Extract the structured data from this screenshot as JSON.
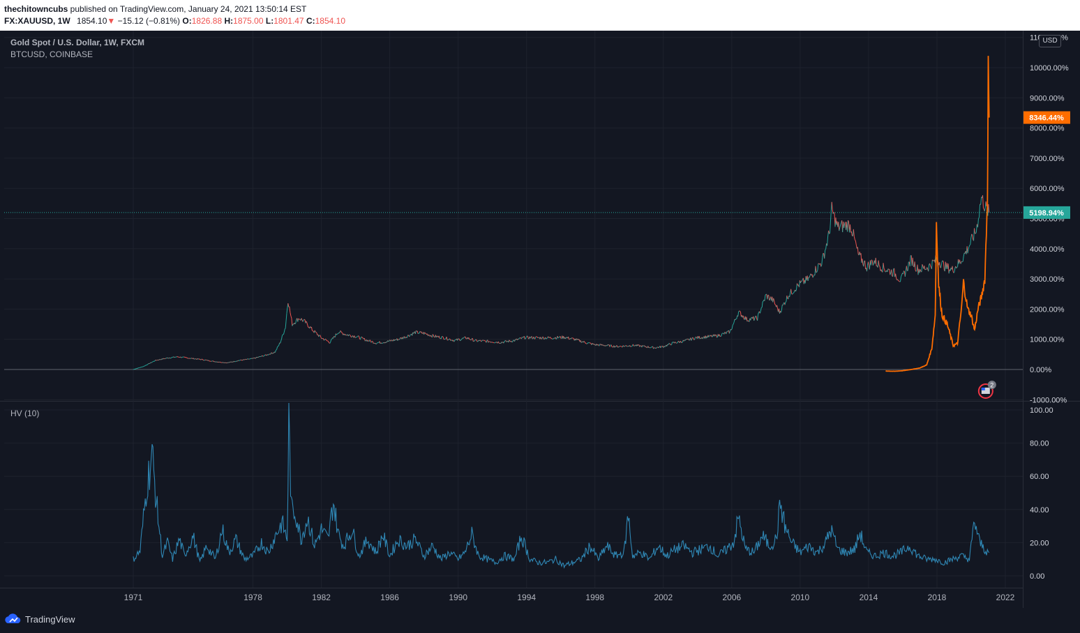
{
  "header": {
    "author": "thechitowncubs",
    "published": " published on TradingView.com, January 24, 2021 13:50:14 EST",
    "symbol": "FX:XAUUSD, 1W",
    "last": "1854.10",
    "change": "−15.12 (−0.81%)",
    "open_label": "O:",
    "open": "1826.88",
    "high_label": "H:",
    "high": "1875.00",
    "low_label": "L:",
    "low": "1801.47",
    "close_label": "C:",
    "close": "1854.10"
  },
  "legend": {
    "main": "Gold Spot / U.S. Dollar, 1W, FXCM",
    "compare": "BTCUSD, COINBASE",
    "indicator": "HV (10)"
  },
  "currency_button": "USD",
  "footer": {
    "brand": "TradingView"
  },
  "colors": {
    "gold": "#26a69a",
    "gold_down": "#ef5350",
    "btc": "#ff6d00",
    "hv": "#2f87b4",
    "bg": "#131722"
  },
  "chart_data": [
    {
      "type": "line",
      "title": "Gold Spot / U.S. Dollar, 1W, FXCM",
      "y_scale": "percent",
      "x_ticks": [
        "1971",
        "1978",
        "1982",
        "1986",
        "1990",
        "1994",
        "1998",
        "2002",
        "2006",
        "2010",
        "2014",
        "2018",
        "2022"
      ],
      "y_ticks": [
        "-1000.00%",
        "0.00%",
        "1000.00%",
        "2000.00%",
        "3000.00%",
        "4000.00%",
        "5000.00%",
        "6000.00%",
        "7000.00%",
        "8000.00%",
        "9000.00%",
        "10000.00%",
        "11000.00%"
      ],
      "ylim": [
        -1000,
        11000
      ],
      "last_labels": [
        {
          "series": "BTCUSD",
          "text": "8346.44%",
          "value": 8346.44
        },
        {
          "series": "XAUUSD",
          "text": "5198.94%",
          "value": 5198.94
        }
      ],
      "series": [
        {
          "name": "Gold Spot / U.S. Dollar",
          "color": "#26a69a",
          "points": [
            [
              1971.0,
              0
            ],
            [
              1971.6,
              100
            ],
            [
              1972.3,
              300
            ],
            [
              1973.0,
              380
            ],
            [
              1973.6,
              420
            ],
            [
              1974.2,
              380
            ],
            [
              1975.0,
              330
            ],
            [
              1975.8,
              260
            ],
            [
              1976.5,
              220
            ],
            [
              1977.2,
              300
            ],
            [
              1978.0,
              360
            ],
            [
              1978.8,
              480
            ],
            [
              1979.3,
              580
            ],
            [
              1979.6,
              900
            ],
            [
              1979.9,
              1400
            ],
            [
              1980.05,
              2300
            ],
            [
              1980.3,
              1500
            ],
            [
              1980.7,
              1700
            ],
            [
              1981.0,
              1600
            ],
            [
              1981.5,
              1300
            ],
            [
              1982.0,
              1050
            ],
            [
              1982.5,
              900
            ],
            [
              1983.0,
              1250
            ],
            [
              1983.5,
              1150
            ],
            [
              1984.0,
              1100
            ],
            [
              1984.6,
              980
            ],
            [
              1985.2,
              880
            ],
            [
              1985.8,
              920
            ],
            [
              1986.5,
              1000
            ],
            [
              1987.0,
              1100
            ],
            [
              1987.5,
              1230
            ],
            [
              1988.0,
              1200
            ],
            [
              1988.6,
              1100
            ],
            [
              1989.2,
              1050
            ],
            [
              1989.8,
              960
            ],
            [
              1990.5,
              1050
            ],
            [
              1991.0,
              950
            ],
            [
              1991.8,
              930
            ],
            [
              1992.5,
              900
            ],
            [
              1993.3,
              960
            ],
            [
              1993.9,
              1060
            ],
            [
              1994.7,
              1050
            ],
            [
              1995.5,
              1050
            ],
            [
              1996.2,
              1070
            ],
            [
              1996.8,
              1000
            ],
            [
              1997.4,
              900
            ],
            [
              1998.0,
              820
            ],
            [
              1998.6,
              800
            ],
            [
              1999.3,
              760
            ],
            [
              1999.8,
              780
            ],
            [
              2000.3,
              800
            ],
            [
              2000.9,
              760
            ],
            [
              2001.5,
              720
            ],
            [
              2002.0,
              760
            ],
            [
              2002.6,
              880
            ],
            [
              2003.2,
              940
            ],
            [
              2003.9,
              1050
            ],
            [
              2004.5,
              1080
            ],
            [
              2005.2,
              1120
            ],
            [
              2005.9,
              1250
            ],
            [
              2006.4,
              1900
            ],
            [
              2006.9,
              1650
            ],
            [
              2007.5,
              1700
            ],
            [
              2008.0,
              2450
            ],
            [
              2008.4,
              2300
            ],
            [
              2008.8,
              1900
            ],
            [
              2009.3,
              2450
            ],
            [
              2009.9,
              2800
            ],
            [
              2010.5,
              3000
            ],
            [
              2010.9,
              3300
            ],
            [
              2011.3,
              3600
            ],
            [
              2011.7,
              4500
            ],
            [
              2011.85,
              5300
            ],
            [
              2012.2,
              4700
            ],
            [
              2012.8,
              4800
            ],
            [
              2013.0,
              4700
            ],
            [
              2013.4,
              3800
            ],
            [
              2013.9,
              3400
            ],
            [
              2014.3,
              3600
            ],
            [
              2014.9,
              3350
            ],
            [
              2015.5,
              3200
            ],
            [
              2015.9,
              2950
            ],
            [
              2016.5,
              3650
            ],
            [
              2016.9,
              3300
            ],
            [
              2017.5,
              3400
            ],
            [
              2018.0,
              3650
            ],
            [
              2018.5,
              3400
            ],
            [
              2018.9,
              3300
            ],
            [
              2019.4,
              3600
            ],
            [
              2019.8,
              4000
            ],
            [
              2020.3,
              4600
            ],
            [
              2020.6,
              5700
            ],
            [
              2020.9,
              5300
            ],
            [
              2021.05,
              5199
            ]
          ]
        },
        {
          "name": "BTCUSD",
          "color": "#ff6d00",
          "points": [
            [
              2015.0,
              -50
            ],
            [
              2015.5,
              -60
            ],
            [
              2016.0,
              -40
            ],
            [
              2016.5,
              0
            ],
            [
              2017.0,
              50
            ],
            [
              2017.4,
              150
            ],
            [
              2017.7,
              700
            ],
            [
              2017.9,
              1800
            ],
            [
              2017.97,
              4900
            ],
            [
              2018.1,
              2800
            ],
            [
              2018.3,
              1800
            ],
            [
              2018.6,
              1500
            ],
            [
              2018.85,
              1000
            ],
            [
              2018.95,
              800
            ],
            [
              2019.2,
              850
            ],
            [
              2019.45,
              2100
            ],
            [
              2019.55,
              2900
            ],
            [
              2019.8,
              2000
            ],
            [
              2020.0,
              1800
            ],
            [
              2020.2,
              1300
            ],
            [
              2020.4,
              2000
            ],
            [
              2020.6,
              2400
            ],
            [
              2020.8,
              3000
            ],
            [
              2020.95,
              5600
            ],
            [
              2021.0,
              10000
            ],
            [
              2021.05,
              8346
            ]
          ]
        }
      ]
    },
    {
      "type": "line",
      "title": "HV (10)",
      "x_ticks": [
        "1971",
        "1978",
        "1982",
        "1986",
        "1990",
        "1994",
        "1998",
        "2002",
        "2006",
        "2010",
        "2014",
        "2018",
        "2022"
      ],
      "y_ticks": [
        "0.00",
        "20.00",
        "40.00",
        "60.00",
        "80.00",
        "100.00"
      ],
      "ylim": [
        -5,
        100
      ],
      "series": [
        {
          "name": "HV (10)",
          "color": "#2f87b4",
          "points": [
            [
              1971.0,
              10
            ],
            [
              1971.4,
              15
            ],
            [
              1971.8,
              55
            ],
            [
              1972.1,
              73
            ],
            [
              1972.4,
              40
            ],
            [
              1972.7,
              12
            ],
            [
              1973.0,
              20
            ],
            [
              1973.3,
              10
            ],
            [
              1973.7,
              22
            ],
            [
              1974.0,
              12
            ],
            [
              1974.5,
              24
            ],
            [
              1974.9,
              8
            ],
            [
              1975.3,
              18
            ],
            [
              1975.8,
              10
            ],
            [
              1976.2,
              28
            ],
            [
              1976.6,
              14
            ],
            [
              1977.0,
              22
            ],
            [
              1977.5,
              10
            ],
            [
              1978.0,
              12
            ],
            [
              1978.5,
              20
            ],
            [
              1978.9,
              14
            ],
            [
              1979.3,
              24
            ],
            [
              1979.7,
              32
            ],
            [
              1980.0,
              22
            ],
            [
              1980.1,
              92
            ],
            [
              1980.25,
              40
            ],
            [
              1980.5,
              38
            ],
            [
              1980.8,
              22
            ],
            [
              1981.2,
              35
            ],
            [
              1981.6,
              18
            ],
            [
              1982.0,
              28
            ],
            [
              1982.4,
              22
            ],
            [
              1982.7,
              45
            ],
            [
              1983.0,
              25
            ],
            [
              1983.3,
              18
            ],
            [
              1983.8,
              28
            ],
            [
              1984.2,
              12
            ],
            [
              1984.7,
              22
            ],
            [
              1985.2,
              14
            ],
            [
              1985.6,
              25
            ],
            [
              1986.0,
              12
            ],
            [
              1986.5,
              22
            ],
            [
              1987.0,
              18
            ],
            [
              1987.5,
              22
            ],
            [
              1988.0,
              12
            ],
            [
              1988.5,
              18
            ],
            [
              1989.0,
              10
            ],
            [
              1989.5,
              14
            ],
            [
              1990.0,
              10
            ],
            [
              1990.4,
              14
            ],
            [
              1990.8,
              25
            ],
            [
              1991.2,
              12
            ],
            [
              1991.7,
              10
            ],
            [
              1992.2,
              8
            ],
            [
              1992.7,
              12
            ],
            [
              1993.3,
              10
            ],
            [
              1993.7,
              24
            ],
            [
              1994.2,
              10
            ],
            [
              1994.7,
              8
            ],
            [
              1995.2,
              8
            ],
            [
              1995.7,
              10
            ],
            [
              1996.2,
              6
            ],
            [
              1996.7,
              8
            ],
            [
              1997.2,
              10
            ],
            [
              1997.7,
              18
            ],
            [
              1998.2,
              10
            ],
            [
              1998.7,
              18
            ],
            [
              1999.2,
              12
            ],
            [
              1999.7,
              14
            ],
            [
              1999.95,
              37
            ],
            [
              2000.2,
              12
            ],
            [
              2000.7,
              14
            ],
            [
              2001.2,
              10
            ],
            [
              2001.7,
              18
            ],
            [
              2002.2,
              12
            ],
            [
              2002.7,
              16
            ],
            [
              2003.2,
              18
            ],
            [
              2003.7,
              14
            ],
            [
              2004.2,
              16
            ],
            [
              2004.7,
              18
            ],
            [
              2005.2,
              12
            ],
            [
              2005.7,
              16
            ],
            [
              2006.1,
              20
            ],
            [
              2006.4,
              35
            ],
            [
              2006.8,
              16
            ],
            [
              2007.3,
              14
            ],
            [
              2007.8,
              24
            ],
            [
              2008.2,
              18
            ],
            [
              2008.6,
              22
            ],
            [
              2008.85,
              44
            ],
            [
              2009.1,
              30
            ],
            [
              2009.5,
              20
            ],
            [
              2010.0,
              14
            ],
            [
              2010.5,
              18
            ],
            [
              2011.0,
              14
            ],
            [
              2011.5,
              20
            ],
            [
              2011.8,
              28
            ],
            [
              2012.2,
              16
            ],
            [
              2012.7,
              14
            ],
            [
              2013.2,
              16
            ],
            [
              2013.5,
              26
            ],
            [
              2013.9,
              14
            ],
            [
              2014.4,
              12
            ],
            [
              2014.9,
              14
            ],
            [
              2015.4,
              12
            ],
            [
              2015.9,
              14
            ],
            [
              2016.4,
              18
            ],
            [
              2016.9,
              12
            ],
            [
              2017.4,
              10
            ],
            [
              2017.9,
              10
            ],
            [
              2018.4,
              8
            ],
            [
              2018.9,
              10
            ],
            [
              2019.4,
              12
            ],
            [
              2019.9,
              10
            ],
            [
              2020.2,
              33
            ],
            [
              2020.5,
              20
            ],
            [
              2020.8,
              16
            ],
            [
              2021.05,
              14
            ]
          ]
        }
      ]
    }
  ]
}
